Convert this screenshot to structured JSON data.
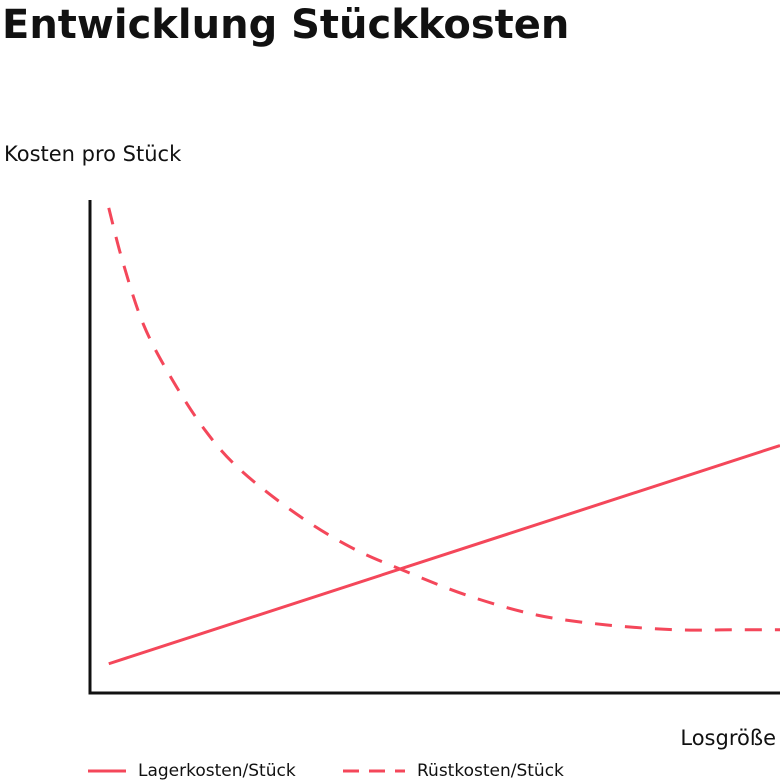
{
  "chart_data": {
    "type": "line",
    "title": "Entwicklung Stückkosten",
    "xlabel": "Losgröße",
    "ylabel": "Kosten pro Stück",
    "grid": false,
    "axis_ticks": false,
    "legend_position": "bottom",
    "color": "#f4475a",
    "series": [
      {
        "name": "Lagerkosten/Stück",
        "style": "solid",
        "x": [
          0.03,
          1.0
        ],
        "y": [
          0.05,
          0.5
        ]
      },
      {
        "name": "Rüstkosten/Stück",
        "style": "dashed",
        "x": [
          0.03,
          0.05,
          0.08,
          0.12,
          0.17,
          0.22,
          0.3,
          0.38,
          0.46,
          0.55,
          0.65,
          0.75,
          0.85,
          0.93,
          1.0
        ],
        "y": [
          0.99,
          0.88,
          0.75,
          0.64,
          0.53,
          0.45,
          0.36,
          0.29,
          0.24,
          0.19,
          0.15,
          0.13,
          0.12,
          0.12,
          0.12
        ]
      }
    ]
  }
}
